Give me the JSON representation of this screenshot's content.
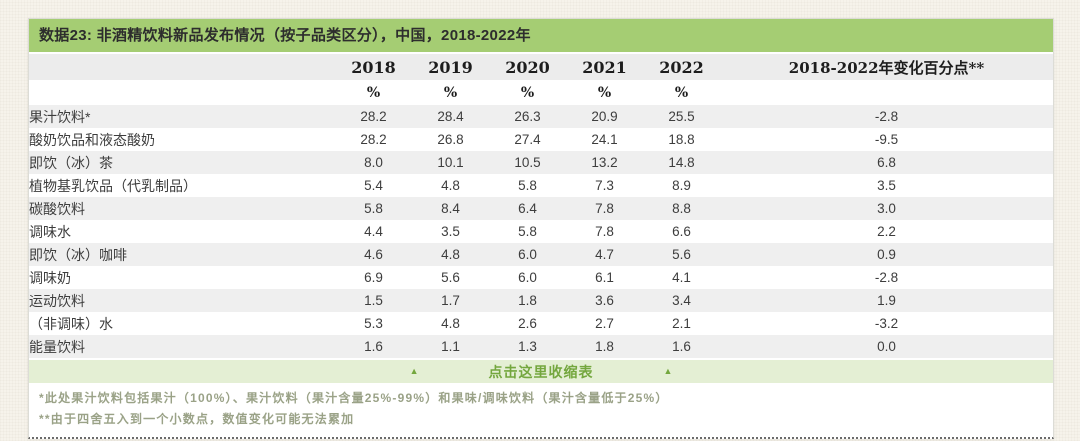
{
  "chart_data": {
    "type": "table",
    "title": "数据23: 非酒精饮料新品发布情况（按子品类区分），中国，2018-2022年",
    "year_columns": [
      "2018",
      "2019",
      "2020",
      "2021",
      "2022"
    ],
    "unit": "%",
    "change_column_header": "2018-2022年变化百分点**",
    "rows": [
      {
        "label": "果汁饮料*",
        "values": [
          "28.2",
          "28.4",
          "26.3",
          "20.9",
          "25.5"
        ],
        "change": "-2.8"
      },
      {
        "label": "酸奶饮品和液态酸奶",
        "values": [
          "28.2",
          "26.8",
          "27.4",
          "24.1",
          "18.8"
        ],
        "change": "-9.5"
      },
      {
        "label": "即饮（冰）茶",
        "values": [
          "8.0",
          "10.1",
          "10.5",
          "13.2",
          "14.8"
        ],
        "change": "6.8"
      },
      {
        "label": "植物基乳饮品（代乳制品）",
        "values": [
          "5.4",
          "4.8",
          "5.8",
          "7.3",
          "8.9"
        ],
        "change": "3.5"
      },
      {
        "label": "碳酸饮料",
        "values": [
          "5.8",
          "8.4",
          "6.4",
          "7.8",
          "8.8"
        ],
        "change": "3.0"
      },
      {
        "label": "调味水",
        "values": [
          "4.4",
          "3.5",
          "5.8",
          "7.8",
          "6.6"
        ],
        "change": "2.2"
      },
      {
        "label": "即饮（冰）咖啡",
        "values": [
          "4.6",
          "4.8",
          "6.0",
          "4.7",
          "5.6"
        ],
        "change": "0.9"
      },
      {
        "label": "调味奶",
        "values": [
          "6.9",
          "5.6",
          "6.0",
          "6.1",
          "4.1"
        ],
        "change": "-2.8"
      },
      {
        "label": "运动饮料",
        "values": [
          "1.5",
          "1.7",
          "1.8",
          "3.6",
          "3.4"
        ],
        "change": "1.9"
      },
      {
        "label": "（非调味）水",
        "values": [
          "5.3",
          "4.8",
          "2.6",
          "2.7",
          "2.1"
        ],
        "change": "-3.2"
      },
      {
        "label": "能量饮料",
        "values": [
          "1.6",
          "1.1",
          "1.3",
          "1.8",
          "1.6"
        ],
        "change": "0.0"
      }
    ]
  },
  "collapse": {
    "label": "点击这里收缩表",
    "icon": "▲"
  },
  "footnotes": [
    "*此处果汁饮料包括果汁（100%）、果汁饮料（果汁含量25%-99%）和果味/调味饮料（果汁含量低于25%）",
    "**由于四舍五入到一个小数点，数值变化可能无法累加"
  ],
  "colors": {
    "title_bar_bg": "#a5cd73",
    "header_row_bg": "#ececec",
    "row_stripe": "#efefef",
    "collapse_bg": "#e4efd4",
    "collapse_text": "#74a73e",
    "footnote_text": "#9aa287"
  }
}
